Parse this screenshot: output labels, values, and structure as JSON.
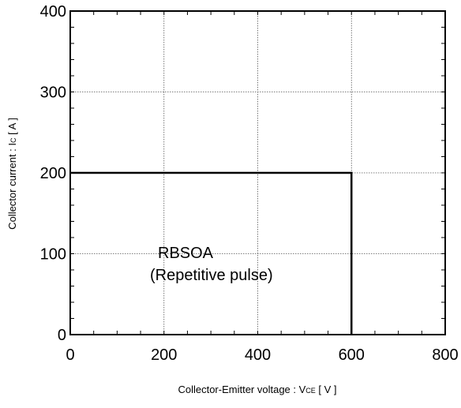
{
  "chart_data": {
    "type": "line",
    "xlabel": {
      "main": "Collector-Emitter voltage  :  V",
      "sub": "CE",
      "unit": " [ V ]"
    },
    "ylabel": {
      "main": "Collector current : I",
      "sub": "C",
      "unit": " [ A ]"
    },
    "xlim": [
      0,
      800
    ],
    "ylim": [
      0,
      400
    ],
    "xticks": [
      "0",
      "200",
      "400",
      "600",
      "800"
    ],
    "yticks": [
      "0",
      "100",
      "200",
      "300",
      "400"
    ],
    "grid": true,
    "series": [
      {
        "x": [
          0,
          600,
          600
        ],
        "y": [
          200,
          200,
          0
        ],
        "color": "#000000"
      }
    ],
    "annotations": [
      "RBSOA",
      "(Repetitive pulse)"
    ]
  }
}
